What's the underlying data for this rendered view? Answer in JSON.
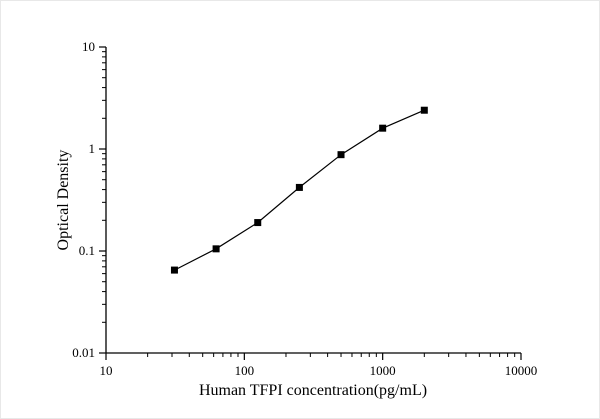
{
  "chart_data": {
    "type": "line",
    "x": [
      31.25,
      62.5,
      125,
      250,
      500,
      1000,
      2000
    ],
    "y": [
      0.065,
      0.105,
      0.19,
      0.42,
      0.88,
      1.6,
      2.4
    ],
    "title": "",
    "xlabel": "Human TFPI concentration(pg/mL)",
    "ylabel": "Optical Density",
    "xlim": [
      10,
      10000
    ],
    "ylim": [
      0.01,
      10
    ],
    "xscale": "log",
    "yscale": "log",
    "x_ticks": [
      10,
      100,
      1000,
      10000
    ],
    "x_tick_labels": [
      "10",
      "100",
      "1000",
      "10000"
    ],
    "y_ticks": [
      0.01,
      0.1,
      1,
      10
    ],
    "y_tick_labels": [
      "0.01",
      "0.1",
      "1",
      "10"
    ],
    "grid": false,
    "legend": false,
    "marker": "filled-square",
    "marker_color": "#000000",
    "line_color": "#000000"
  }
}
